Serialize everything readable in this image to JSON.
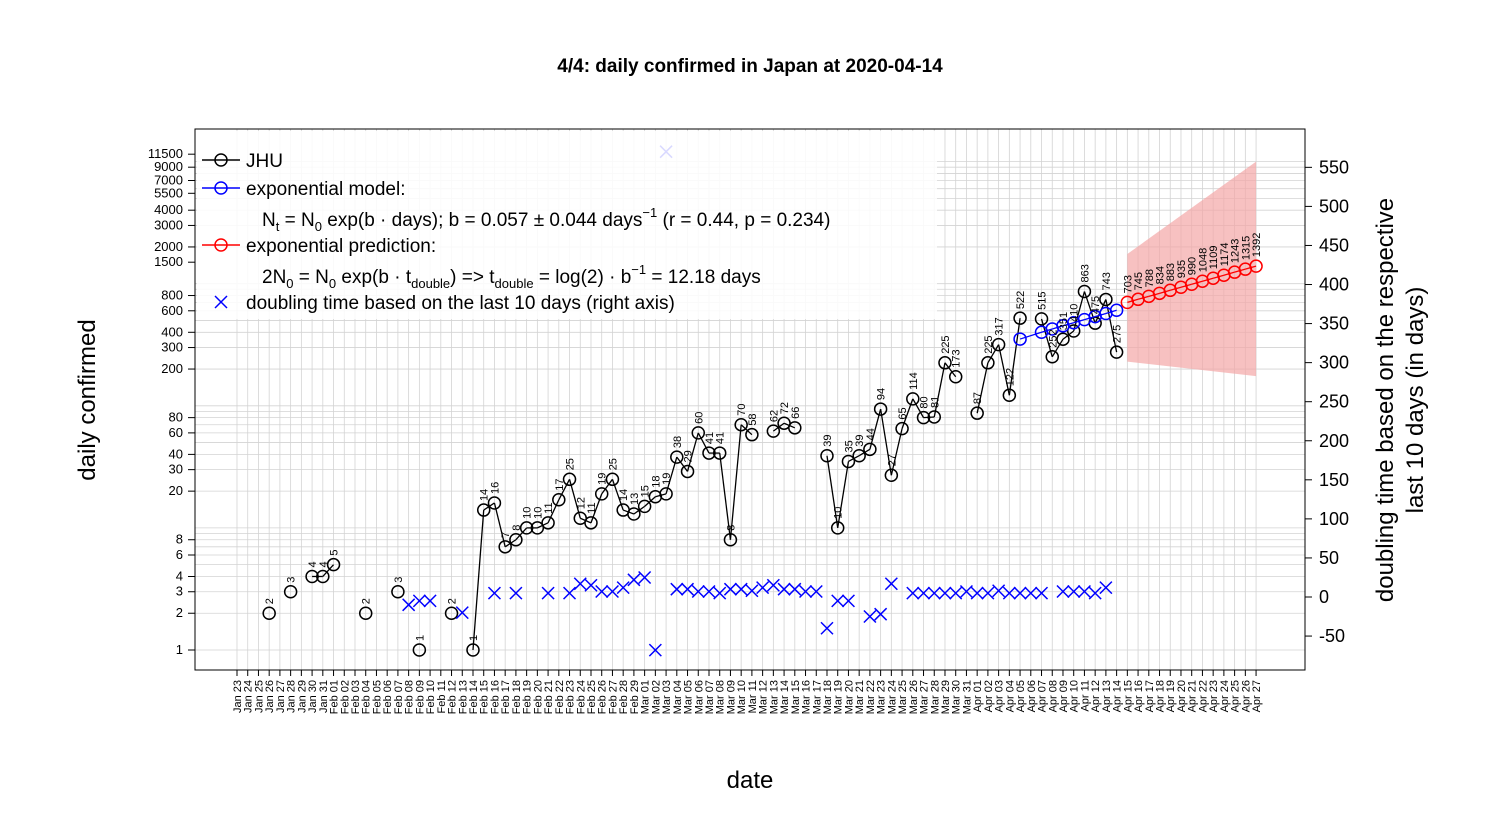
{
  "chart_data": {
    "type": "line",
    "title": "4/4: daily confirmed in Japan at 2020-04-14",
    "xlabel": "date",
    "ylabel_left": "daily confirmed",
    "ylabel_right_line1": "doubling time based on the respective",
    "ylabel_right_line2": "last 10 days (in days)",
    "y_scale": "log",
    "y_left_ticks": [
      1,
      2,
      3,
      4,
      6,
      8,
      20,
      30,
      40,
      60,
      80,
      200,
      300,
      400,
      600,
      800,
      1500,
      2000,
      3000,
      4000,
      5500,
      7000,
      9000,
      11500
    ],
    "y_right_ticks": [
      -50,
      0,
      50,
      100,
      150,
      200,
      250,
      300,
      350,
      400,
      450,
      500,
      550
    ],
    "dates": [
      "Jan 23",
      "Jan 24",
      "Jan 25",
      "Jan 26",
      "Jan 27",
      "Jan 28",
      "Jan 29",
      "Jan 30",
      "Jan 31",
      "Feb 01",
      "Feb 02",
      "Feb 03",
      "Feb 04",
      "Feb 05",
      "Feb 06",
      "Feb 07",
      "Feb 08",
      "Feb 09",
      "Feb 10",
      "Feb 11",
      "Feb 12",
      "Feb 13",
      "Feb 14",
      "Feb 15",
      "Feb 16",
      "Feb 17",
      "Feb 18",
      "Feb 19",
      "Feb 20",
      "Feb 21",
      "Feb 22",
      "Feb 23",
      "Feb 24",
      "Feb 25",
      "Feb 26",
      "Feb 27",
      "Feb 28",
      "Feb 29",
      "Mar 01",
      "Mar 02",
      "Mar 03",
      "Mar 04",
      "Mar 05",
      "Mar 06",
      "Mar 07",
      "Mar 08",
      "Mar 09",
      "Mar 10",
      "Mar 11",
      "Mar 12",
      "Mar 13",
      "Mar 14",
      "Mar 15",
      "Mar 16",
      "Mar 17",
      "Mar 18",
      "Mar 19",
      "Mar 20",
      "Mar 21",
      "Mar 22",
      "Mar 23",
      "Mar 24",
      "Mar 25",
      "Mar 26",
      "Mar 27",
      "Mar 28",
      "Mar 29",
      "Mar 30",
      "Mar 31",
      "Apr 01",
      "Apr 02",
      "Apr 03",
      "Apr 04",
      "Apr 05",
      "Apr 06",
      "Apr 07",
      "Apr 08",
      "Apr 09",
      "Apr 10",
      "Apr 11",
      "Apr 12",
      "Apr 13",
      "Apr 14",
      "Apr 15",
      "Apr 16",
      "Apr 17",
      "Apr 18",
      "Apr 19",
      "Apr 20",
      "Apr 21",
      "Apr 22",
      "Apr 23",
      "Apr 24",
      "Apr 25",
      "Apr 26",
      "Apr 27"
    ],
    "jhu_points": [
      {
        "date": "Jan 26",
        "value": 2
      },
      {
        "date": "Jan 28",
        "value": 3
      },
      {
        "date": "Jan 30",
        "value": 4
      },
      {
        "date": "Jan 31",
        "value": 4
      },
      {
        "date": "Feb 01",
        "value": 5
      },
      {
        "date": "Feb 04",
        "value": 2
      },
      {
        "date": "Feb 07",
        "value": 3
      },
      {
        "date": "Feb 09",
        "value": 1
      },
      {
        "date": "Feb 12",
        "value": 2
      },
      {
        "date": "Feb 14",
        "value": 1
      },
      {
        "date": "Feb 15",
        "value": 14
      },
      {
        "date": "Feb 16",
        "value": 16
      },
      {
        "date": "Feb 17",
        "value": 7
      },
      {
        "date": "Feb 18",
        "value": 8
      },
      {
        "date": "Feb 19",
        "value": 10
      },
      {
        "date": "Feb 20",
        "value": 10
      },
      {
        "date": "Feb 21",
        "value": 11
      },
      {
        "date": "Feb 22",
        "value": 17
      },
      {
        "date": "Feb 23",
        "value": 25
      },
      {
        "date": "Feb 24",
        "value": 12
      },
      {
        "date": "Feb 25",
        "value": 11
      },
      {
        "date": "Feb 26",
        "value": 19
      },
      {
        "date": "Feb 27",
        "value": 25
      },
      {
        "date": "Feb 28",
        "value": 14
      },
      {
        "date": "Feb 29",
        "value": 13
      },
      {
        "date": "Mar 01",
        "value": 15
      },
      {
        "date": "Mar 02",
        "value": 18
      },
      {
        "date": "Mar 03",
        "value": 19
      },
      {
        "date": "Mar 04",
        "value": 38
      },
      {
        "date": "Mar 05",
        "value": 29
      },
      {
        "date": "Mar 06",
        "value": 60
      },
      {
        "date": "Mar 07",
        "value": 41
      },
      {
        "date": "Mar 08",
        "value": 41
      },
      {
        "date": "Mar 09",
        "value": 8
      },
      {
        "date": "Mar 10",
        "value": 70
      },
      {
        "date": "Mar 11",
        "value": 58
      },
      {
        "date": "Mar 13",
        "value": 62
      },
      {
        "date": "Mar 14",
        "value": 72
      },
      {
        "date": "Mar 15",
        "value": 66
      },
      {
        "date": "Mar 18",
        "value": 39
      },
      {
        "date": "Mar 19",
        "value": 10
      },
      {
        "date": "Mar 20",
        "value": 35
      },
      {
        "date": "Mar 21",
        "value": 39
      },
      {
        "date": "Mar 22",
        "value": 44
      },
      {
        "date": "Mar 23",
        "value": 94
      },
      {
        "date": "Mar 24",
        "value": 27
      },
      {
        "date": "Mar 25",
        "value": 65
      },
      {
        "date": "Mar 26",
        "value": 114
      },
      {
        "date": "Mar 27",
        "value": 80
      },
      {
        "date": "Mar 28",
        "value": 81
      },
      {
        "date": "Mar 29",
        "value": 225
      },
      {
        "date": "Mar 30",
        "value": 173
      },
      {
        "date": "Apr 01",
        "value": 87
      },
      {
        "date": "Apr 02",
        "value": 225
      },
      {
        "date": "Apr 03",
        "value": 317
      },
      {
        "date": "Apr 04",
        "value": 122
      },
      {
        "date": "Apr 05",
        "value": 522
      },
      {
        "date": "Apr 07",
        "value": 515
      },
      {
        "date": "Apr 08",
        "value": 252
      },
      {
        "date": "Apr 09",
        "value": 351
      },
      {
        "date": "Apr 10",
        "value": 410
      },
      {
        "date": "Apr 11",
        "value": 863
      },
      {
        "date": "Apr 12",
        "value": 475
      },
      {
        "date": "Apr 13",
        "value": 743
      },
      {
        "date": "Apr 14",
        "value": 275
      }
    ],
    "jhu_broken_links": [
      [
        "Feb 01",
        "Feb 04"
      ],
      [
        "Feb 04",
        "Feb 07"
      ],
      [
        "Feb 09",
        "Feb 12"
      ],
      [
        "Jan 26",
        "Jan 28"
      ],
      [
        "Jan 28",
        "Jan 30"
      ],
      [
        "Feb 07",
        "Feb 09"
      ],
      [
        "Feb 12",
        "Feb 14"
      ],
      [
        "Mar 11",
        "Mar 13"
      ],
      [
        "Mar 15",
        "Mar 18"
      ],
      [
        "Mar 30",
        "Apr 01"
      ],
      [
        "Apr 05",
        "Apr 07"
      ]
    ],
    "model_points": [
      {
        "date": "Apr 05",
        "value": 352
      },
      {
        "date": "Apr 07",
        "value": 400
      },
      {
        "date": "Apr 08",
        "value": 426
      },
      {
        "date": "Apr 09",
        "value": 452
      },
      {
        "date": "Apr 10",
        "value": 479
      },
      {
        "date": "Apr 11",
        "value": 508
      },
      {
        "date": "Apr 12",
        "value": 538
      },
      {
        "date": "Apr 13",
        "value": 570
      },
      {
        "date": "Apr 14",
        "value": 606
      }
    ],
    "prediction_points": [
      {
        "date": "Apr 15",
        "value": 703
      },
      {
        "date": "Apr 16",
        "value": 745
      },
      {
        "date": "Apr 17",
        "value": 788
      },
      {
        "date": "Apr 18",
        "value": 834
      },
      {
        "date": "Apr 19",
        "value": 883
      },
      {
        "date": "Apr 20",
        "value": 935
      },
      {
        "date": "Apr 21",
        "value": 990
      },
      {
        "date": "Apr 22",
        "value": 1048
      },
      {
        "date": "Apr 23",
        "value": 1109
      },
      {
        "date": "Apr 24",
        "value": 1174
      },
      {
        "date": "Apr 25",
        "value": 1243
      },
      {
        "date": "Apr 26",
        "value": 1315
      },
      {
        "date": "Apr 27",
        "value": 1392
      }
    ],
    "prediction_band": {
      "start_date": "Apr 15",
      "end_date": "Apr 27",
      "lower_start": 230,
      "lower_end": 175,
      "upper_start": 1750,
      "upper_end": 10000
    },
    "doubling_points": [
      {
        "date": "Feb 08",
        "value": -10
      },
      {
        "date": "Feb 09",
        "value": -5
      },
      {
        "date": "Feb 10",
        "value": -5
      },
      {
        "date": "Feb 13",
        "value": -20
      },
      {
        "date": "Feb 16",
        "value": 5
      },
      {
        "date": "Feb 18",
        "value": 5
      },
      {
        "date": "Feb 21",
        "value": 5
      },
      {
        "date": "Feb 23",
        "value": 5
      },
      {
        "date": "Feb 24",
        "value": 17
      },
      {
        "date": "Feb 25",
        "value": 15
      },
      {
        "date": "Feb 26",
        "value": 7
      },
      {
        "date": "Feb 27",
        "value": 7
      },
      {
        "date": "Feb 28",
        "value": 12
      },
      {
        "date": "Feb 29",
        "value": 22
      },
      {
        "date": "Mar 01",
        "value": 25
      },
      {
        "date": "Mar 02",
        "value": -68
      },
      {
        "date": "Mar 03",
        "value": 570
      },
      {
        "date": "Mar 04",
        "value": 10
      },
      {
        "date": "Mar 05",
        "value": 10
      },
      {
        "date": "Mar 06",
        "value": 7
      },
      {
        "date": "Mar 07",
        "value": 7
      },
      {
        "date": "Mar 08",
        "value": 5
      },
      {
        "date": "Mar 09",
        "value": 10
      },
      {
        "date": "Mar 10",
        "value": 10
      },
      {
        "date": "Mar 11",
        "value": 8
      },
      {
        "date": "Mar 12",
        "value": 12
      },
      {
        "date": "Mar 13",
        "value": 15
      },
      {
        "date": "Mar 14",
        "value": 10
      },
      {
        "date": "Mar 15",
        "value": 10
      },
      {
        "date": "Mar 16",
        "value": 7
      },
      {
        "date": "Mar 17",
        "value": 7
      },
      {
        "date": "Mar 18",
        "value": -40
      },
      {
        "date": "Mar 19",
        "value": -5
      },
      {
        "date": "Mar 20",
        "value": -5
      },
      {
        "date": "Mar 22",
        "value": -25
      },
      {
        "date": "Mar 23",
        "value": -22
      },
      {
        "date": "Mar 24",
        "value": 17
      },
      {
        "date": "Mar 26",
        "value": 5
      },
      {
        "date": "Mar 27",
        "value": 5
      },
      {
        "date": "Mar 28",
        "value": 5
      },
      {
        "date": "Mar 29",
        "value": 5
      },
      {
        "date": "Mar 30",
        "value": 5
      },
      {
        "date": "Mar 31",
        "value": 7
      },
      {
        "date": "Apr 01",
        "value": 5
      },
      {
        "date": "Apr 02",
        "value": 5
      },
      {
        "date": "Apr 03",
        "value": 8
      },
      {
        "date": "Apr 04",
        "value": 5
      },
      {
        "date": "Apr 05",
        "value": 5
      },
      {
        "date": "Apr 06",
        "value": 5
      },
      {
        "date": "Apr 07",
        "value": 5
      },
      {
        "date": "Apr 09",
        "value": 7
      },
      {
        "date": "Apr 10",
        "value": 7
      },
      {
        "date": "Apr 11",
        "value": 7
      },
      {
        "date": "Apr 12",
        "value": 5
      },
      {
        "date": "Apr 13",
        "value": 12
      }
    ],
    "legend": [
      {
        "label": "JHU",
        "color": "#000000",
        "marker": "circle"
      },
      {
        "label": "exponential model:",
        "color": "#0000ff",
        "marker": "circle"
      },
      {
        "label": "exponential prediction:",
        "color": "#ff0000",
        "marker": "circle"
      },
      {
        "label": "doubling time based on the last  10  days (right axis)",
        "color": "#0000ff",
        "marker": "cross"
      }
    ],
    "legend_formula_1": "Nt = N0 exp(b · days); b = 0.057 ± 0.044 days−1 (r = 0.44, p = 0.234)",
    "legend_formula_2": "2N0 = N0 exp(b · tdouble) => tdouble = log(2) · b−1 = 12.18 days",
    "colors": {
      "jhu": "#000000",
      "model": "#0000ff",
      "prediction": "#ff0000",
      "band": "#f4a6a6",
      "grid": "#d3d3d3"
    }
  }
}
